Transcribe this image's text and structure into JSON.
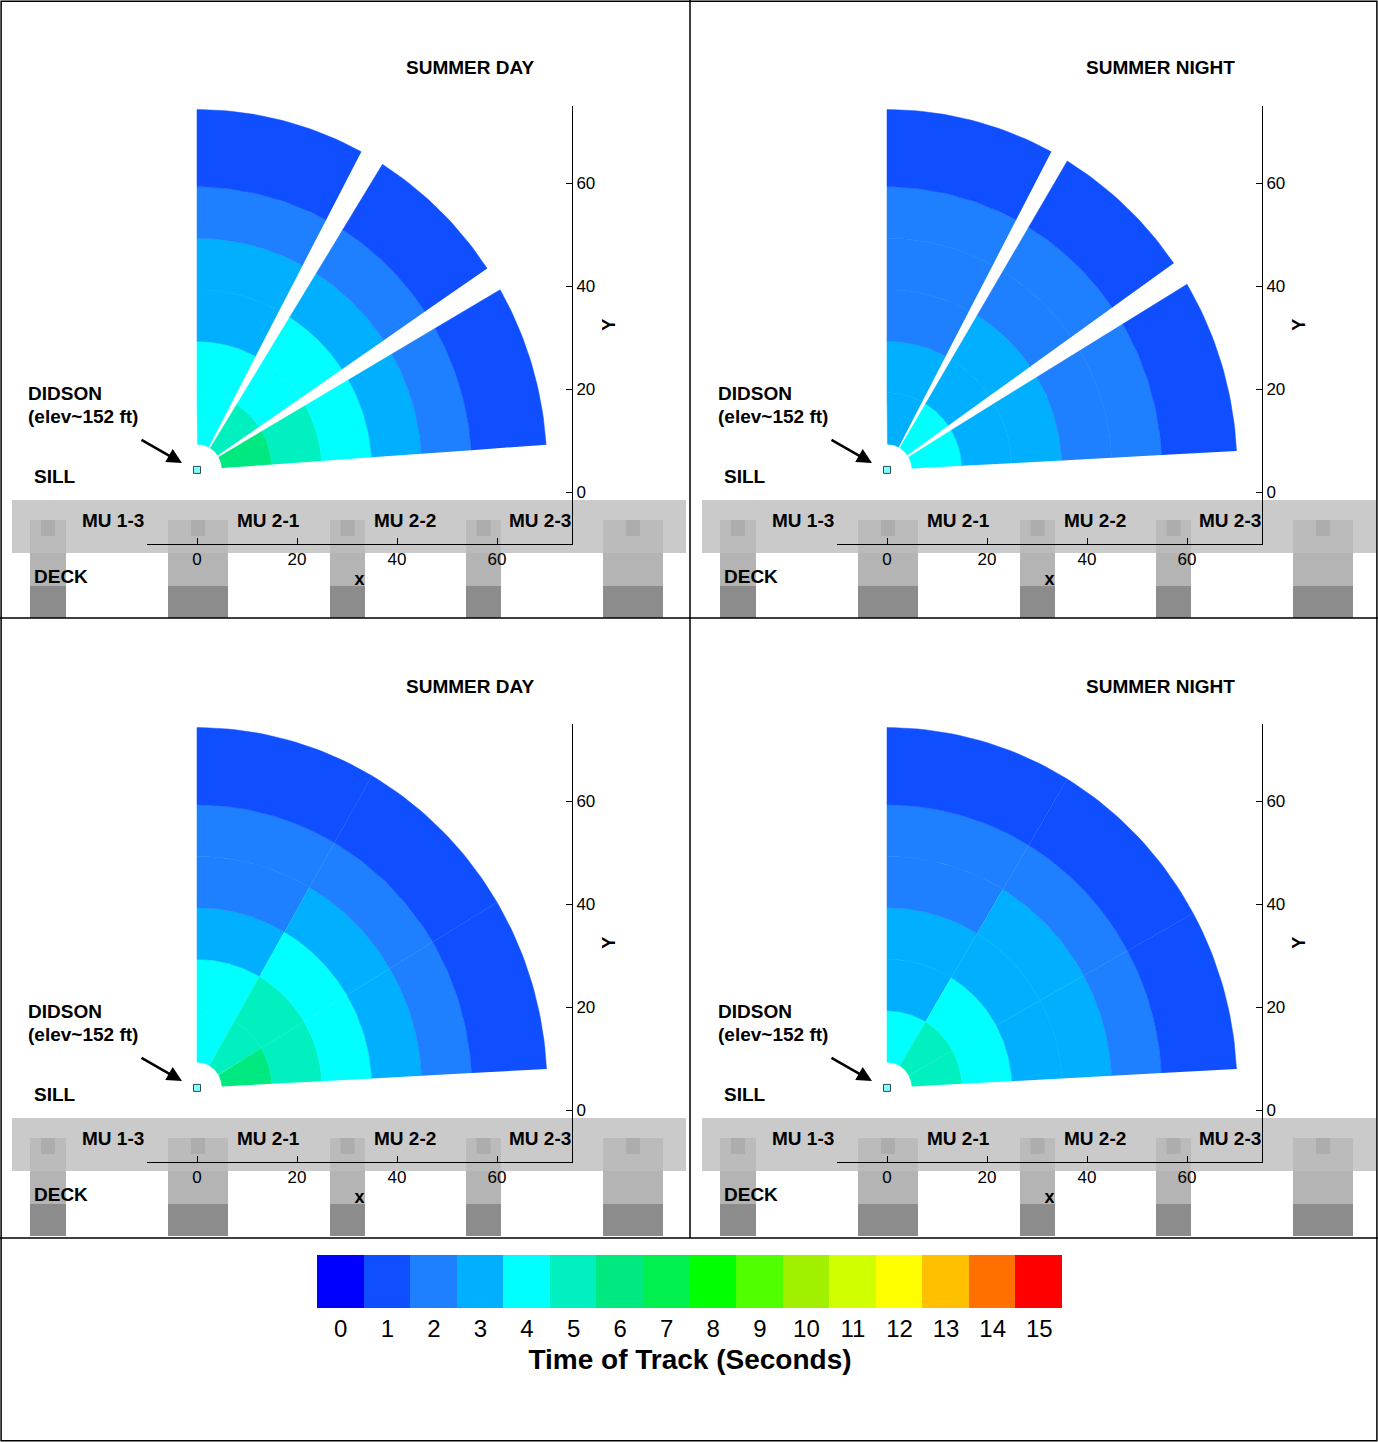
{
  "chart_data": [
    {
      "type": "sector_map",
      "title": "SUMMER DAY",
      "xlabel": "x",
      "ylabel": "Y",
      "xlim": [
        -10,
        75
      ],
      "ylim": [
        -10,
        75
      ],
      "xticks": [
        0,
        20,
        40,
        60
      ],
      "yticks": [
        0,
        20,
        40,
        60
      ],
      "didson_xy": [
        0,
        4.3
      ],
      "radii": [
        5,
        15,
        25,
        35,
        45,
        55,
        70
      ],
      "sectors": [
        {
          "angles": [
            62,
            90
          ],
          "times": [
            4,
            4,
            3,
            3,
            2,
            1
          ]
        },
        {
          "angles": [
            34,
            58
          ],
          "times": [
            5,
            4,
            4,
            3,
            2,
            1
          ]
        },
        {
          "angles": [
            4,
            30
          ],
          "times": [
            6,
            5,
            4,
            3,
            2,
            1
          ]
        }
      ],
      "labels": {
        "didson": [
          "DIDSON",
          "(elev~152 ft)"
        ],
        "sill": "SILL",
        "deck": "DECK",
        "units": [
          "MU 1-3",
          "MU 2-1",
          "MU 2-2",
          "MU 2-3"
        ]
      }
    },
    {
      "type": "sector_map",
      "title": "SUMMER NIGHT",
      "xlabel": "x",
      "ylabel": "Y",
      "xlim": [
        -10,
        75
      ],
      "ylim": [
        -10,
        75
      ],
      "xticks": [
        0,
        20,
        40,
        60
      ],
      "yticks": [
        0,
        20,
        40,
        60
      ],
      "didson_xy": [
        0,
        4.3
      ],
      "radii": [
        5,
        15,
        25,
        35,
        45,
        55,
        70
      ],
      "sectors": [
        {
          "angles": [
            62,
            90
          ],
          "times": [
            3,
            3,
            2,
            2,
            2,
            1
          ]
        },
        {
          "angles": [
            35,
            59
          ],
          "times": [
            4,
            3,
            3,
            2,
            2,
            1
          ]
        },
        {
          "angles": [
            3,
            31
          ],
          "times": [
            4,
            3,
            3,
            2,
            2,
            1
          ]
        }
      ],
      "labels": {
        "didson": [
          "DIDSON",
          "(elev~152 ft)"
        ],
        "sill": "SILL",
        "deck": "DECK",
        "units": [
          "MU 1-3",
          "MU 2-1",
          "MU 2-2",
          "MU 2-3"
        ]
      }
    },
    {
      "type": "sector_map",
      "title": "SUMMER DAY",
      "xlabel": "x",
      "ylabel": "Y",
      "xlim": [
        -10,
        75
      ],
      "ylim": [
        -10,
        75
      ],
      "xticks": [
        0,
        20,
        40,
        60
      ],
      "yticks": [
        0,
        20,
        40,
        60
      ],
      "didson_xy": [
        0,
        4.3
      ],
      "radii": [
        5,
        15,
        25,
        35,
        45,
        55,
        70
      ],
      "sectors": [
        {
          "angles": [
            60,
            90
          ],
          "times": [
            4,
            4,
            3,
            2,
            2,
            1
          ]
        },
        {
          "angles": [
            31,
            60
          ],
          "times": [
            5,
            5,
            4,
            3,
            2,
            1
          ]
        },
        {
          "angles": [
            3,
            31
          ],
          "times": [
            6,
            5,
            4,
            3,
            2,
            1
          ]
        }
      ],
      "labels": {
        "didson": [
          "DIDSON",
          "(elev~152 ft)"
        ],
        "sill": "SILL",
        "deck": "DECK",
        "units": [
          "MU 1-3",
          "MU 2-1",
          "MU 2-2",
          "MU 2-3"
        ]
      }
    },
    {
      "type": "sector_map",
      "title": "SUMMER NIGHT",
      "xlabel": "x",
      "ylabel": "Y",
      "xlim": [
        -10,
        75
      ],
      "ylim": [
        -10,
        75
      ],
      "xticks": [
        0,
        20,
        40,
        60
      ],
      "yticks": [
        0,
        20,
        40,
        60
      ],
      "didson_xy": [
        0,
        4.3
      ],
      "radii": [
        5,
        15,
        25,
        35,
        45,
        55,
        70
      ],
      "sectors": [
        {
          "angles": [
            59,
            90
          ],
          "times": [
            4,
            3,
            3,
            2,
            2,
            1
          ]
        },
        {
          "angles": [
            29,
            59
          ],
          "times": [
            5,
            4,
            3,
            3,
            2,
            1
          ]
        },
        {
          "angles": [
            3,
            29
          ],
          "times": [
            5,
            4,
            3,
            3,
            2,
            1
          ]
        }
      ],
      "labels": {
        "didson": [
          "DIDSON",
          "(elev~152 ft)"
        ],
        "sill": "SILL",
        "deck": "DECK",
        "units": [
          "MU 1-3",
          "MU 2-1",
          "MU 2-2",
          "MU 2-3"
        ]
      }
    }
  ],
  "color_bar": {
    "title": "Time of Track (Seconds)",
    "range": [
      -0.5,
      15.5
    ],
    "ticks": [
      0,
      1,
      2,
      3,
      4,
      5,
      6,
      7,
      8,
      9,
      10,
      11,
      12,
      13,
      14,
      15
    ],
    "colors": [
      "#0000ff",
      "#0f4fff",
      "#1e7fff",
      "#00b0ff",
      "#00ffff",
      "#00f0c0",
      "#00e880",
      "#00f050",
      "#00ff00",
      "#50ff00",
      "#a0f000",
      "#d0ff00",
      "#ffff00",
      "#ffc000",
      "#ff7000",
      "#ff0000"
    ]
  }
}
